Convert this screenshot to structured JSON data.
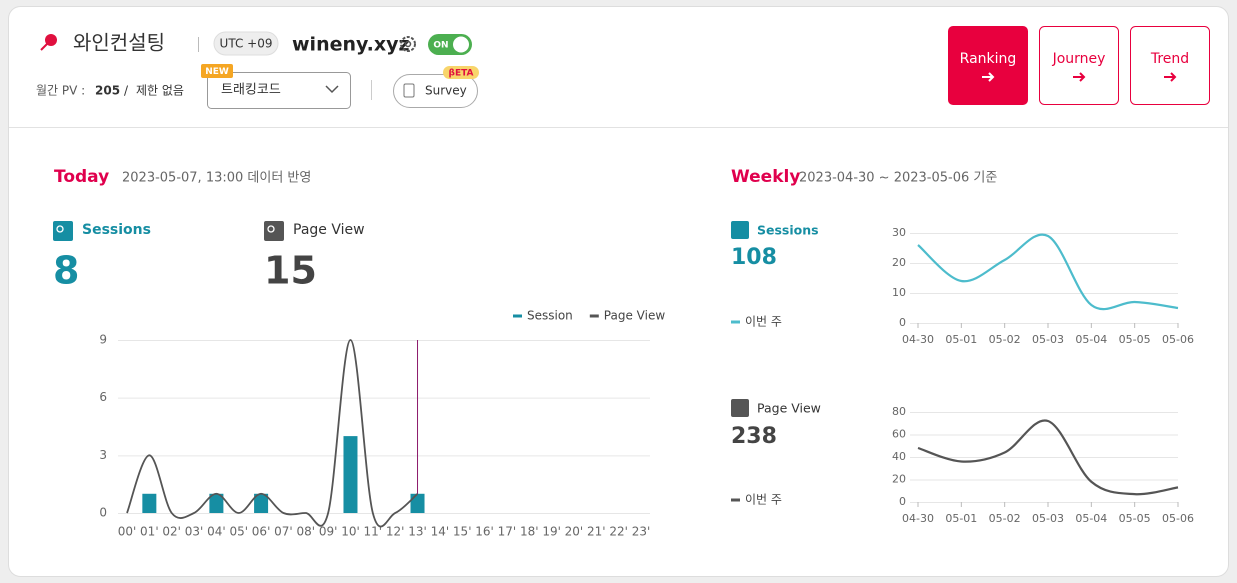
{
  "header": {
    "site_name": "와인컨설팅",
    "timezone": "UTC +09",
    "domain": "wineny.xyz",
    "toggle": "ON",
    "pv_label": "월간 PV :",
    "pv_value": "205",
    "pv_sep": "/",
    "pv_limit": "제한 없음",
    "select": "트래킹코드",
    "new_badge": "NEW",
    "survey": "Survey",
    "beta_badge": "βETA"
  },
  "nav": [
    "Ranking",
    "Journey",
    "Trend"
  ],
  "today": {
    "title": "Today",
    "subtitle": "2023-05-07, 13:00 데이터 반영",
    "sessions_label": "Sessions",
    "sessions_value": 8,
    "pageview_label": "Page View",
    "pageview_value": 15
  },
  "weekly": {
    "title": "Weekly",
    "subtitle": "2023-04-30 ~ 2023-05-06 기준",
    "sessions_label": "Sessions",
    "sessions_value": 108,
    "pageview_label": "Page View",
    "pageview_value": 238
  },
  "chart_data": [
    {
      "type": "combo",
      "categories": [
        "00'",
        "01'",
        "02'",
        "03'",
        "04'",
        "05'",
        "06'",
        "07'",
        "08'",
        "09'",
        "10'",
        "11'",
        "12'",
        "13'",
        "14'",
        "15'",
        "16'",
        "17'",
        "18'",
        "19'",
        "20'",
        "21'",
        "22'",
        "23'"
      ],
      "series": [
        {
          "name": "Session",
          "type": "bar",
          "color": "#168ea3",
          "values": [
            0,
            1,
            0,
            0,
            1,
            0,
            1,
            0,
            0,
            0,
            4,
            0,
            0,
            1,
            null,
            null,
            null,
            null,
            null,
            null,
            null,
            null,
            null,
            null
          ]
        },
        {
          "name": "Page View",
          "type": "line",
          "color": "#555555",
          "values": [
            0,
            3,
            0,
            0,
            1,
            0,
            1,
            0,
            0,
            0,
            9,
            0,
            0,
            1,
            null,
            null,
            null,
            null,
            null,
            null,
            null,
            null,
            null,
            null
          ]
        }
      ],
      "ylim": [
        0,
        9
      ],
      "yticks": [
        0,
        3,
        6,
        9
      ],
      "grid": true,
      "current_index": 13,
      "current_color": "#8b1a6b",
      "legend": "top-right"
    },
    {
      "type": "line",
      "categories": [
        "04-30",
        "05-01",
        "05-02",
        "05-03",
        "05-04",
        "05-05",
        "05-06"
      ],
      "series": [
        {
          "name": "이번 주",
          "color": "#4dbccc",
          "values": [
            26,
            14,
            21,
            29,
            6,
            7,
            5
          ]
        }
      ],
      "ylim": [
        0,
        30
      ],
      "yticks": [
        0,
        10,
        20,
        30
      ],
      "grid": true
    },
    {
      "type": "line",
      "categories": [
        "04-30",
        "05-01",
        "05-02",
        "05-03",
        "05-04",
        "05-05",
        "05-06"
      ],
      "series": [
        {
          "name": "이번 주",
          "color": "#555555",
          "values": [
            48,
            36,
            44,
            72,
            18,
            7,
            13
          ]
        }
      ],
      "ylim": [
        0,
        80
      ],
      "yticks": [
        0,
        20,
        40,
        60,
        80
      ],
      "grid": true
    }
  ]
}
